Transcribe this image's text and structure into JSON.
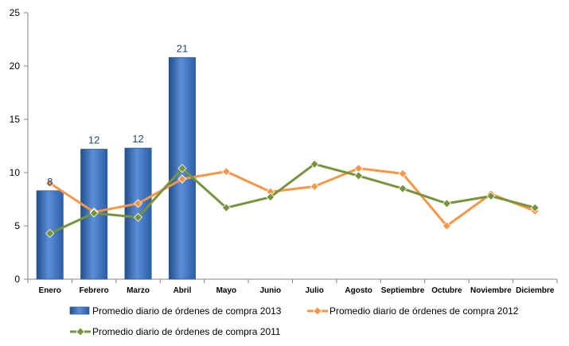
{
  "chart_data": {
    "type": "bar",
    "categories": [
      "Enero",
      "Febrero",
      "Marzo",
      "Abril",
      "Mayo",
      "Junio",
      "Julio",
      "Agosto",
      "Septiembre",
      "Octubre",
      "Noviembre",
      "Diciembre"
    ],
    "ylim": [
      0,
      25
    ],
    "yticks": [
      0,
      5,
      10,
      15,
      20,
      25
    ],
    "grid": false,
    "legend_position": "bottom",
    "series": [
      {
        "name": "Promedio diario de órdenes de compra 2013",
        "type": "bar",
        "color": "#4F81BD",
        "values": [
          8.3,
          12.2,
          12.3,
          20.8,
          null,
          null,
          null,
          null,
          null,
          null,
          null,
          null
        ],
        "labels": [
          "8",
          "12",
          "12",
          "21",
          null,
          null,
          null,
          null,
          null,
          null,
          null,
          null
        ]
      },
      {
        "name": "Promedio diario de órdenes de compra 2012",
        "type": "line",
        "color": "#F79646",
        "values": [
          9.0,
          6.3,
          7.1,
          9.4,
          10.1,
          8.2,
          8.7,
          10.4,
          9.9,
          5.0,
          8.0,
          6.4
        ]
      },
      {
        "name": "Promedio diario de órdenes de compra 2011",
        "type": "line",
        "color": "#77933C",
        "values": [
          4.3,
          6.2,
          5.8,
          10.4,
          6.7,
          7.7,
          10.8,
          9.7,
          8.5,
          7.1,
          7.8,
          6.7
        ]
      }
    ]
  }
}
